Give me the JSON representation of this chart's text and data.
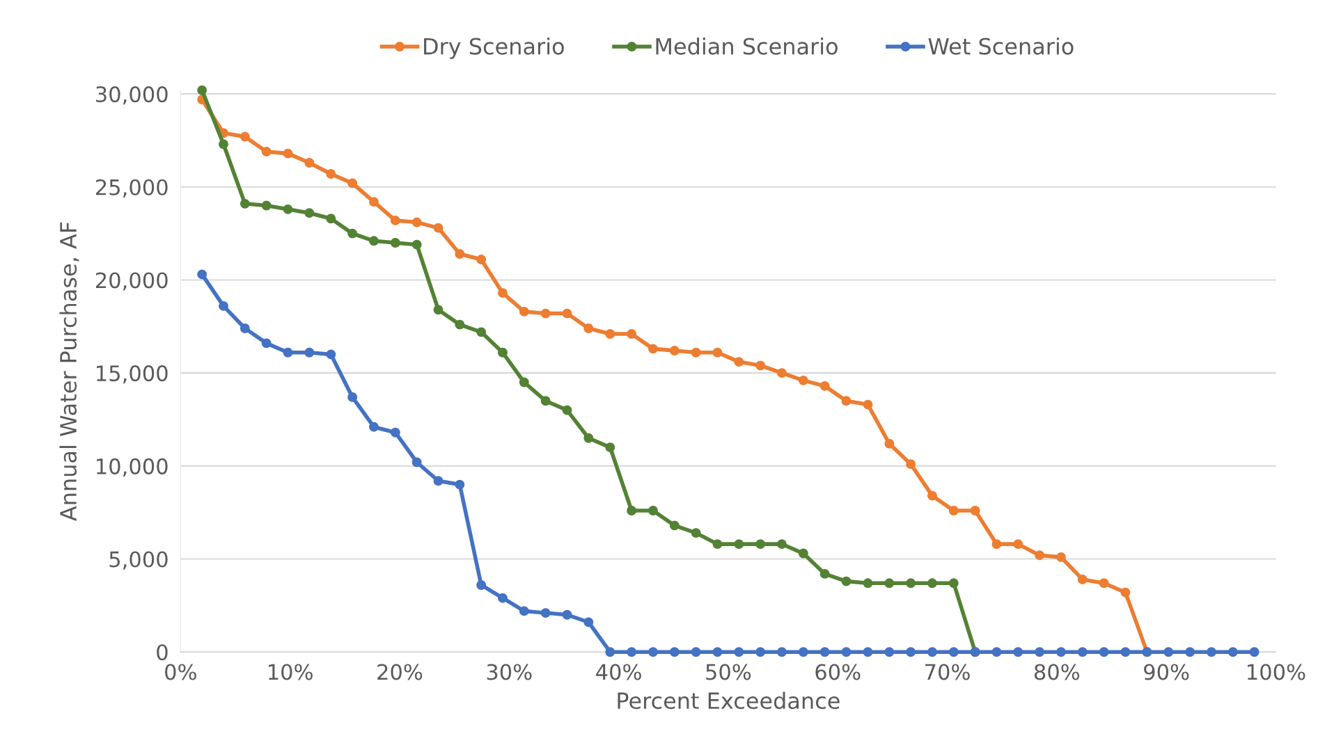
{
  "chart_data": {
    "type": "line",
    "xlabel": "Percent Exceedance",
    "ylabel": "Annual Water Purchase, AF",
    "x": [
      1.96,
      3.92,
      5.88,
      7.84,
      9.8,
      11.76,
      13.73,
      15.69,
      17.65,
      19.61,
      21.57,
      23.53,
      25.49,
      27.45,
      29.41,
      31.37,
      33.33,
      35.29,
      37.25,
      39.22,
      41.18,
      43.14,
      45.1,
      47.06,
      49.02,
      50.98,
      52.94,
      54.9,
      56.86,
      58.82,
      60.78,
      62.75,
      64.71,
      66.67,
      68.63,
      70.59,
      72.55,
      74.51,
      76.47,
      78.43,
      80.39,
      82.35,
      84.31,
      86.27,
      88.24,
      90.2,
      92.16,
      94.12,
      96.08,
      98.04
    ],
    "series": [
      {
        "name": "Dry Scenario",
        "color": "#ed7d31",
        "values": [
          29700,
          27900,
          27700,
          26900,
          26800,
          26300,
          25700,
          25200,
          24200,
          23200,
          23100,
          22800,
          21400,
          21100,
          19300,
          18300,
          18200,
          18200,
          17400,
          17100,
          17100,
          16300,
          16200,
          16100,
          16100,
          15600,
          15400,
          15000,
          14600,
          14300,
          13500,
          13300,
          11200,
          10100,
          8400,
          7600,
          7600,
          5800,
          5800,
          5200,
          5100,
          3900,
          3700,
          3200,
          0,
          null,
          null,
          null,
          null,
          null
        ]
      },
      {
        "name": "Median Scenario",
        "color": "#548235",
        "values": [
          30200,
          27300,
          24100,
          24000,
          23800,
          23600,
          23300,
          22500,
          22100,
          22000,
          21900,
          18400,
          17600,
          17200,
          16100,
          14500,
          13500,
          13000,
          11500,
          11000,
          7600,
          7600,
          6800,
          6400,
          5800,
          5800,
          5800,
          5800,
          5300,
          4200,
          3800,
          3700,
          3700,
          3700,
          3700,
          3700,
          0,
          null,
          null,
          null,
          null,
          null,
          null,
          null,
          null,
          null,
          null,
          null,
          null,
          null
        ]
      },
      {
        "name": "Wet Scenario",
        "color": "#4472c4",
        "values": [
          20300,
          18600,
          17400,
          16600,
          16100,
          16100,
          16000,
          13700,
          12100,
          11800,
          10200,
          9200,
          9000,
          3600,
          2900,
          2200,
          2100,
          2000,
          1600,
          0,
          0,
          0,
          0,
          0,
          0,
          0,
          0,
          0,
          0,
          0,
          0,
          0,
          0,
          0,
          0,
          0,
          0,
          0,
          0,
          0,
          0,
          0,
          0,
          0,
          0,
          0,
          0,
          0,
          0,
          0
        ]
      }
    ],
    "xlim": [
      0,
      100
    ],
    "xticks": [
      {
        "value": 0,
        "label": "0%"
      },
      {
        "value": 10,
        "label": "10%"
      },
      {
        "value": 20,
        "label": "20%"
      },
      {
        "value": 30,
        "label": "30%"
      },
      {
        "value": 40,
        "label": "40%"
      },
      {
        "value": 50,
        "label": "50%"
      },
      {
        "value": 60,
        "label": "60%"
      },
      {
        "value": 70,
        "label": "70%"
      },
      {
        "value": 80,
        "label": "80%"
      },
      {
        "value": 90,
        "label": "90%"
      },
      {
        "value": 100,
        "label": "100%"
      }
    ],
    "ylim": [
      0,
      30200
    ],
    "yticks": [
      0,
      {
        "value": 5000,
        "label": "5,000"
      },
      {
        "value": 10000,
        "label": "10,000"
      },
      {
        "value": 15000,
        "label": "15,000"
      },
      {
        "value": 20000,
        "label": "20,000"
      },
      {
        "value": 25000,
        "label": "25,000"
      },
      {
        "value": 30000,
        "label": "30,000"
      }
    ],
    "grid": "y",
    "legend": "top",
    "marker": "circle",
    "line_style": "solid"
  }
}
